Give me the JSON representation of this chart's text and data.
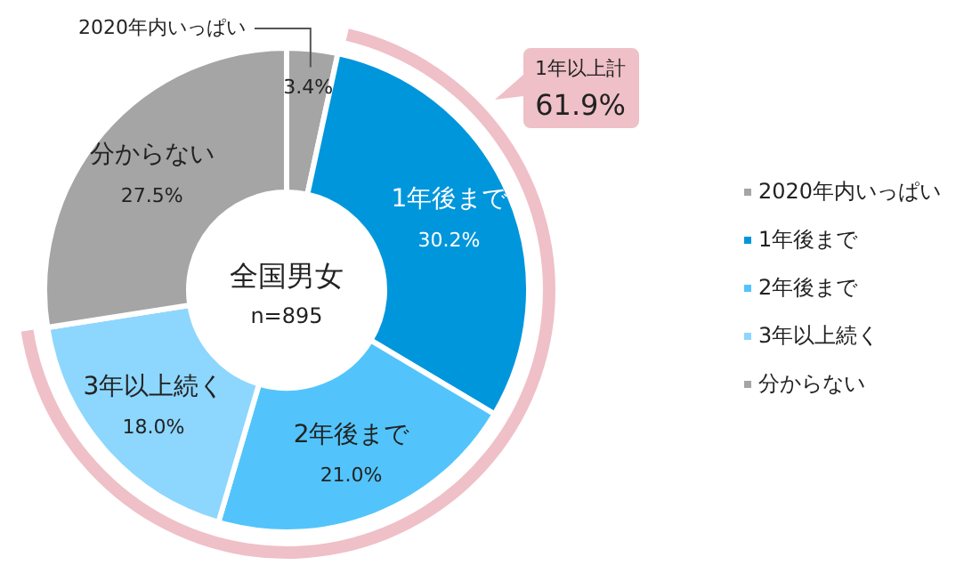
{
  "chart_data": {
    "type": "donut",
    "categories": [
      "2020年内いっぱい",
      "1年後まで",
      "2年後まで",
      "3年以上続く",
      "分からない"
    ],
    "values": [
      3.4,
      30.2,
      21.0,
      18.0,
      27.5
    ],
    "colors": [
      "#a5a5a5",
      "#0096dc",
      "#52c4fb",
      "#8dd6fd",
      "#a5a5a5"
    ],
    "value_labels": [
      "3.4%",
      "30.2%",
      "21.0%",
      "18.0%",
      "27.5%"
    ],
    "legend": "right",
    "annotations": [
      "全国男女",
      "n=895",
      "1年以上計\n61.9%"
    ]
  }
}
